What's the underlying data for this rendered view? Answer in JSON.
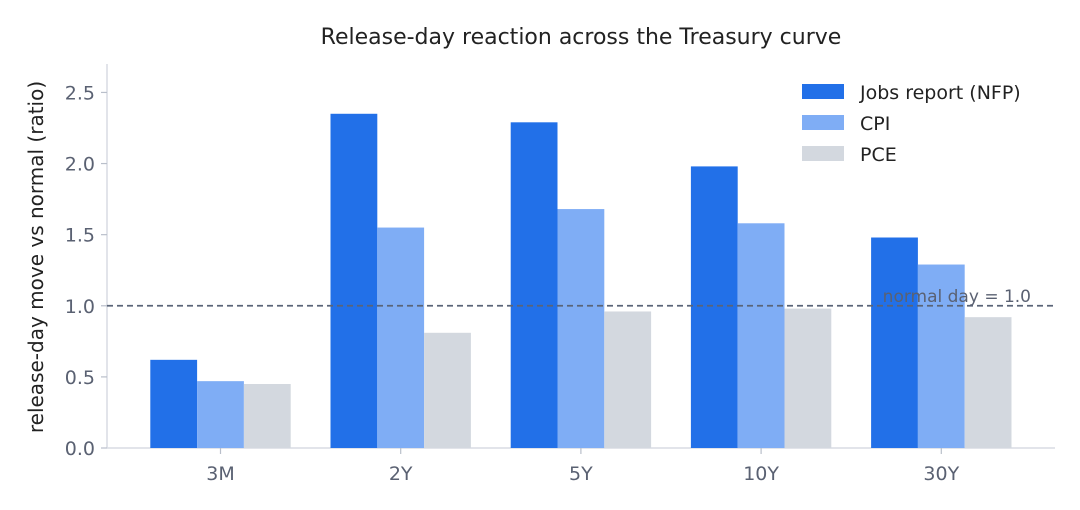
{
  "chart_data": {
    "type": "bar",
    "title": "Release-day reaction across the Treasury curve",
    "xlabel": "",
    "ylabel": "release-day move vs normal (ratio)",
    "categories": [
      "3M",
      "2Y",
      "5Y",
      "10Y",
      "30Y"
    ],
    "series": [
      {
        "name": "Jobs report (NFP)",
        "color": "#2270e8",
        "values": [
          0.62,
          2.35,
          2.29,
          1.98,
          1.48
        ]
      },
      {
        "name": "CPI",
        "color": "#7fadf5",
        "values": [
          0.47,
          1.55,
          1.68,
          1.58,
          1.29
        ]
      },
      {
        "name": "PCE",
        "color": "#d3d8df",
        "values": [
          0.45,
          0.81,
          0.96,
          0.98,
          0.92
        ]
      }
    ],
    "ylim": [
      0,
      2.7
    ],
    "yticks": [
      0.0,
      0.5,
      1.0,
      1.5,
      2.0,
      2.5
    ],
    "ytick_labels": [
      "0.0",
      "0.5",
      "1.0",
      "1.5",
      "2.0",
      "2.5"
    ],
    "grid": false,
    "legend_position": "top-right",
    "reference_line": {
      "value": 1.0,
      "label": "normal day = 1.0",
      "style": "dashed",
      "color": "#5a6478"
    }
  }
}
